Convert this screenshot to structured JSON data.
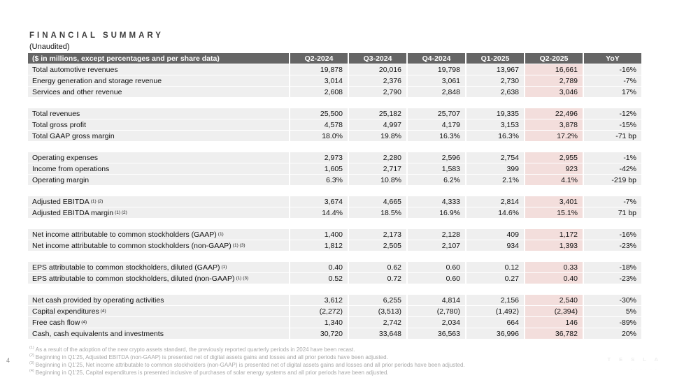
{
  "page": {
    "title": "FINANCIAL SUMMARY",
    "subtitle": "(Unaudited)",
    "page_number": "4",
    "watermark": "TESLA",
    "watermark_sub": "· · · · · ·"
  },
  "colors": {
    "header_bg": "#656565",
    "header_text": "#ffffff",
    "row_bg": "#efefef",
    "highlight_bg": "#f3dedc",
    "footnote_text": "#a8a8a8"
  },
  "table": {
    "header": {
      "label": "($ in millions, except percentages and per share data)",
      "columns": [
        "Q2-2024",
        "Q3-2024",
        "Q4-2024",
        "Q1-2025",
        "Q2-2025",
        "YoY"
      ],
      "highlight_column": "Q2-2025"
    },
    "sections": [
      {
        "rows": [
          {
            "label": "Total automotive revenues",
            "sup": "",
            "values": [
              "19,878",
              "20,016",
              "19,798",
              "13,967",
              "16,661",
              "-16%"
            ]
          },
          {
            "label": "Energy generation and storage revenue",
            "sup": "",
            "values": [
              "3,014",
              "2,376",
              "3,061",
              "2,730",
              "2,789",
              "-7%"
            ]
          },
          {
            "label": "Services and other revenue",
            "sup": "",
            "values": [
              "2,608",
              "2,790",
              "2,848",
              "2,638",
              "3,046",
              "17%"
            ]
          }
        ]
      },
      {
        "rows": [
          {
            "label": "Total revenues",
            "sup": "",
            "values": [
              "25,500",
              "25,182",
              "25,707",
              "19,335",
              "22,496",
              "-12%"
            ]
          },
          {
            "label": "Total gross profit",
            "sup": "",
            "values": [
              "4,578",
              "4,997",
              "4,179",
              "3,153",
              "3,878",
              "-15%"
            ]
          },
          {
            "label": "Total GAAP gross margin",
            "sup": "",
            "values": [
              "18.0%",
              "19.8%",
              "16.3%",
              "16.3%",
              "17.2%",
              "-71 bp"
            ]
          }
        ]
      },
      {
        "rows": [
          {
            "label": "Operating expenses",
            "sup": "",
            "values": [
              "2,973",
              "2,280",
              "2,596",
              "2,754",
              "2,955",
              "-1%"
            ]
          },
          {
            "label": "Income from operations",
            "sup": "",
            "values": [
              "1,605",
              "2,717",
              "1,583",
              "399",
              "923",
              "-42%"
            ]
          },
          {
            "label": "Operating margin",
            "sup": "",
            "values": [
              "6.3%",
              "10.8%",
              "6.2%",
              "2.1%",
              "4.1%",
              "-219 bp"
            ]
          }
        ]
      },
      {
        "rows": [
          {
            "label": "Adjusted EBITDA",
            "sup": "(1) (2)",
            "values": [
              "3,674",
              "4,665",
              "4,333",
              "2,814",
              "3,401",
              "-7%"
            ]
          },
          {
            "label": "Adjusted EBITDA margin",
            "sup": "(1) (2)",
            "values": [
              "14.4%",
              "18.5%",
              "16.9%",
              "14.6%",
              "15.1%",
              "71 bp"
            ]
          }
        ]
      },
      {
        "rows": [
          {
            "label": "Net income attributable to common stockholders (GAAP)",
            "sup": "(1)",
            "values": [
              "1,400",
              "2,173",
              "2,128",
              "409",
              "1,172",
              "-16%"
            ]
          },
          {
            "label": "Net income attributable to common stockholders (non-GAAP)",
            "sup": "(1) (3)",
            "values": [
              "1,812",
              "2,505",
              "2,107",
              "934",
              "1,393",
              "-23%"
            ]
          }
        ]
      },
      {
        "rows": [
          {
            "label": "EPS attributable to common stockholders, diluted (GAAP)",
            "sup": "(1)",
            "values": [
              "0.40",
              "0.62",
              "0.60",
              "0.12",
              "0.33",
              "-18%"
            ]
          },
          {
            "label": "EPS attributable to common stockholders, diluted (non-GAAP)",
            "sup": "(1) (3)",
            "values": [
              "0.52",
              "0.72",
              "0.60",
              "0.27",
              "0.40",
              "-23%"
            ]
          }
        ]
      },
      {
        "rows": [
          {
            "label": "Net cash provided by operating activities",
            "sup": "",
            "values": [
              "3,612",
              "6,255",
              "4,814",
              "2,156",
              "2,540",
              "-30%"
            ]
          },
          {
            "label": "Capital expenditures",
            "sup": "(4)",
            "values": [
              "(2,272)",
              "(3,513)",
              "(2,780)",
              "(1,492)",
              "(2,394)",
              "5%"
            ]
          },
          {
            "label": "Free cash flow",
            "sup": "(4)",
            "values": [
              "1,340",
              "2,742",
              "2,034",
              "664",
              "146",
              "-89%"
            ]
          },
          {
            "label": "Cash, cash equivalents and investments",
            "sup": "",
            "values": [
              "30,720",
              "33,648",
              "36,563",
              "36,996",
              "36,782",
              "20%"
            ]
          }
        ]
      }
    ]
  },
  "footnotes": [
    {
      "marker": "(1)",
      "text": "As a result of the adoption of the new crypto assets standard, the previously reported quarterly periods in 2024 have been recast."
    },
    {
      "marker": "(2)",
      "text": "Beginning in Q1'25, Adjusted EBITDA (non-GAAP) is presented net of digital assets gains and losses and all prior periods have been adjusted."
    },
    {
      "marker": "(3)",
      "text": "Beginning in Q1'25, Net income attributable to common stockholders (non-GAAP) is presented net of digital assets gains and losses and all prior periods have been adjusted."
    },
    {
      "marker": "(4)",
      "text": "Beginning in Q1'25, Capital expenditures is presented inclusive of purchases of solar energy systems and all prior periods have been adjusted."
    }
  ]
}
